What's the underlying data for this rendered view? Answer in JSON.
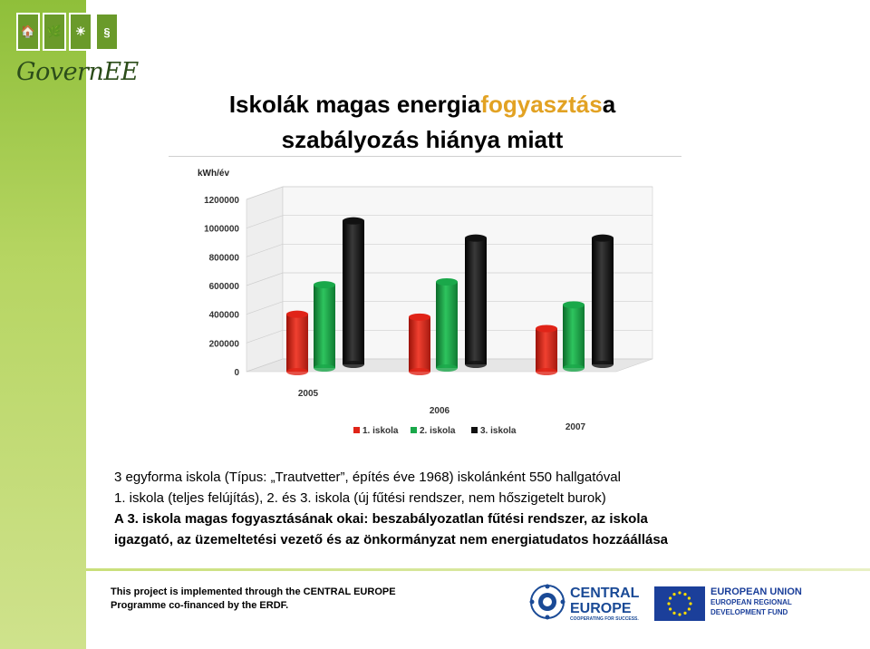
{
  "logo": {
    "text": "GovernEE",
    "tile_glyphs": [
      "🏠",
      "🌿",
      "☀",
      "§"
    ]
  },
  "title": {
    "part1": "Iskolák magas energia",
    "highlight1": "fogyasztás",
    "part2": "a",
    "line2": "szabályozás hiánya miatt",
    "highlight_color": "#e2a223"
  },
  "chart_data": {
    "type": "bar",
    "ylabel": "kWh/év",
    "ylim": [
      0,
      1200000
    ],
    "yticks": [
      "0",
      "200000",
      "400000",
      "600000",
      "800000",
      "1000000",
      "1200000"
    ],
    "categories": [
      "2005",
      "2006",
      "2007"
    ],
    "series": [
      {
        "name": "1. iskola",
        "color": "#e02418",
        "values": [
          400000,
          380000,
          300000
        ]
      },
      {
        "name": "2. iskola",
        "color": "#1aa84a",
        "values": [
          580000,
          600000,
          440000
        ]
      },
      {
        "name": "3. iskola",
        "color": "#111111",
        "values": [
          1000000,
          880000,
          880000
        ]
      }
    ],
    "grid": true,
    "legend_position": "bottom"
  },
  "info": {
    "line1": "3 egyforma iskola (Típus: „Trautvetter”, építés éve 1968) iskolánként 550 hallgatóval",
    "line2": "1. iskola (teljes felújítás), 2. és 3. iskola (új fűtési rendszer, nem hőszigetelt burok)",
    "line3": "A 3. iskola magas fogyasztásának okai: beszabályozatlan fűtési rendszer, az iskola",
    "line4": "igazgató, az üzemeltetési vezető és az önkormányzat nem energiatudatos hozzáállása"
  },
  "footer": {
    "line1": "This project is implemented through the CENTRAL EUROPE",
    "line2": "Programme co-financed by the ERDF.",
    "ce_line1": "CENTRAL",
    "ce_line2": "EUROPE",
    "ce_tagline": "COOPERATING FOR SUCCESS.",
    "eu_line1": "EUROPEAN UNION",
    "eu_line2": "EUROPEAN REGIONAL",
    "eu_line3": "DEVELOPMENT FUND"
  }
}
